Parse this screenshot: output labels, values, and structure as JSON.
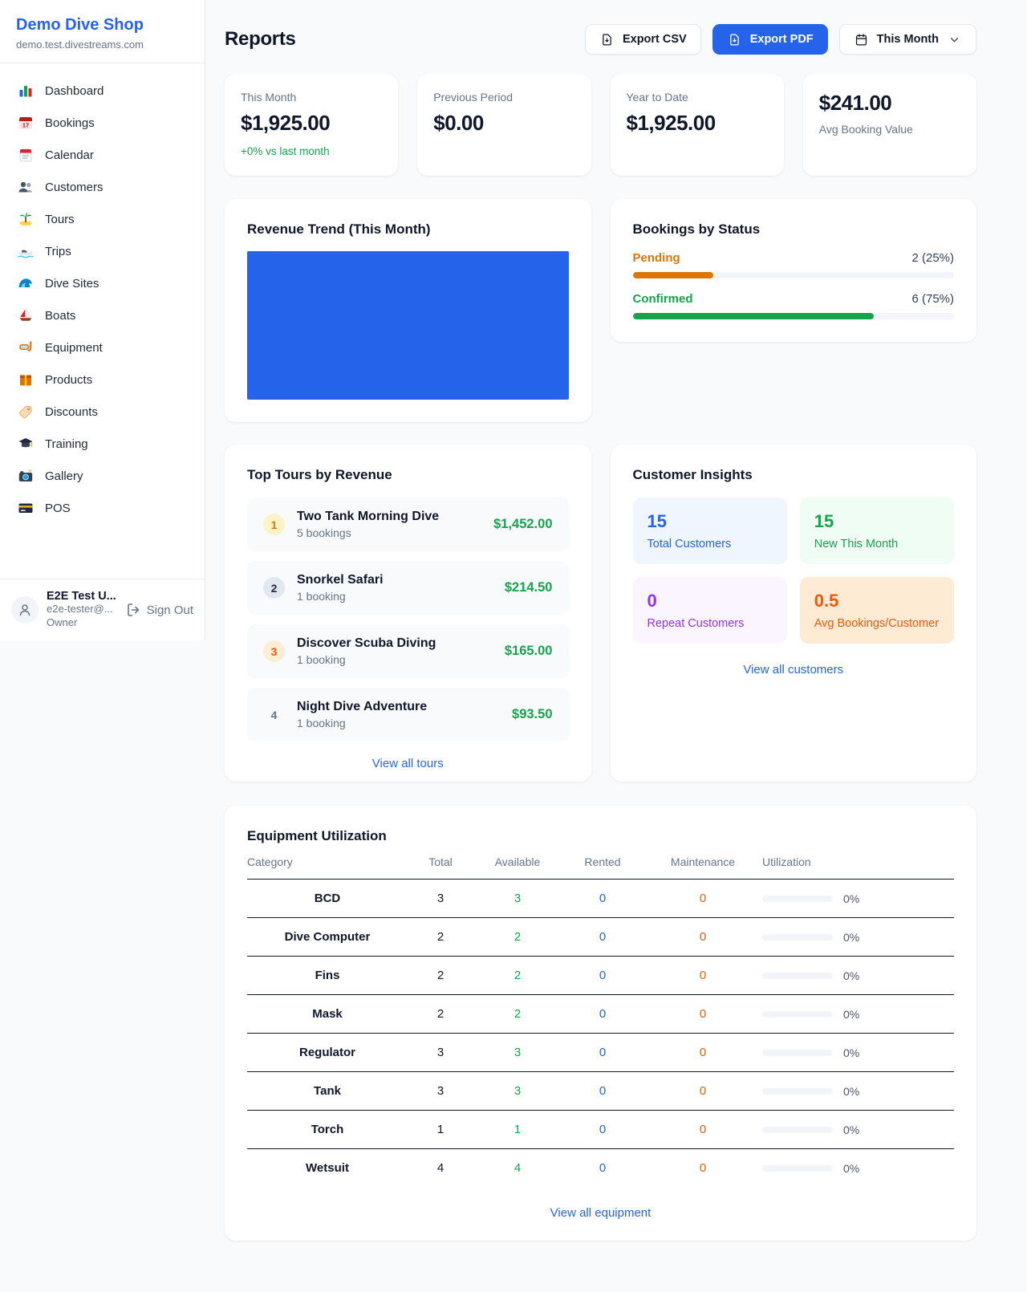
{
  "colors": {
    "accent": "#2563eb",
    "green": "#16a34a",
    "orange": "#d97706",
    "deep_orange": "#ea580c",
    "purple": "#9333ea"
  },
  "sidebar": {
    "brand": "Demo Dive Shop",
    "domain": "demo.test.divestreams.com",
    "items": [
      {
        "icon": "bar-chart",
        "label": "Dashboard"
      },
      {
        "icon": "calendar-17",
        "label": "Bookings"
      },
      {
        "icon": "calendar-tearoff",
        "label": "Calendar"
      },
      {
        "icon": "users",
        "label": "Customers"
      },
      {
        "icon": "island",
        "label": "Tours"
      },
      {
        "icon": "speedboat",
        "label": "Trips"
      },
      {
        "icon": "wave",
        "label": "Dive Sites"
      },
      {
        "icon": "sailboat",
        "label": "Boats"
      },
      {
        "icon": "dive-mask",
        "label": "Equipment"
      },
      {
        "icon": "package",
        "label": "Products"
      },
      {
        "icon": "tag",
        "label": "Discounts"
      },
      {
        "icon": "grad-cap",
        "label": "Training"
      },
      {
        "icon": "camera",
        "label": "Gallery"
      },
      {
        "icon": "credit-card",
        "label": "POS"
      }
    ],
    "user": {
      "name": "E2E Test U...",
      "email": "e2e-tester@...",
      "role": "Owner",
      "signout_label": "Sign Out"
    }
  },
  "header": {
    "title": "Reports",
    "export_csv": "Export CSV",
    "export_pdf": "Export PDF",
    "period": "This Month"
  },
  "stats": [
    {
      "label": "This Month",
      "value": "$1,925.00",
      "delta": "+0% vs last month"
    },
    {
      "label": "Previous Period",
      "value": "$0.00"
    },
    {
      "label": "Year to Date",
      "value": "$1,925.00"
    },
    {
      "label": "Avg Booking Value",
      "value": "$241.00"
    }
  ],
  "revenue_trend": {
    "title": "Revenue Trend (This Month)",
    "bar_color": "#2563eb"
  },
  "bookings_by_status": {
    "title": "Bookings by Status",
    "rows": [
      {
        "label": "Pending",
        "value_text": "2 (25%)",
        "count": 2,
        "pct": 25,
        "label_style": "color:#d97706",
        "fill_style": "width:25%;background:#d97706"
      },
      {
        "label": "Confirmed",
        "value_text": "6 (75%)",
        "count": 6,
        "pct": 75,
        "label_style": "color:#16a34a",
        "fill_style": "width:75%;background:#16a34a"
      }
    ]
  },
  "top_tours": {
    "title": "Top Tours by Revenue",
    "items": [
      {
        "rank": "1",
        "name": "Two Tank Morning Dive",
        "bookings": "5 bookings",
        "revenue": "$1,452.00",
        "badge_style": "background:#fef3c7;color:#d97706"
      },
      {
        "rank": "2",
        "name": "Snorkel Safari",
        "bookings": "1 booking",
        "revenue": "$214.50",
        "badge_style": "background:#e2e8f0;color:#1e293b"
      },
      {
        "rank": "3",
        "name": "Discover Scuba Diving",
        "bookings": "1 booking",
        "revenue": "$165.00",
        "badge_style": "background:#ffedd5;color:#ea580c"
      },
      {
        "rank": "4",
        "name": "Night Dive Adventure",
        "bookings": "1 booking",
        "revenue": "$93.50",
        "badge_style": "background:transparent;color:#64748b"
      }
    ],
    "link": "View all tours"
  },
  "customer_insights": {
    "title": "Customer Insights",
    "boxes": [
      {
        "value": "15",
        "label": "Total Customers",
        "style": "background:#eff6ff;color:#2563eb"
      },
      {
        "value": "15",
        "label": "New This Month",
        "style": "background:#f0fdf4;color:#16a34a"
      },
      {
        "value": "0",
        "label": "Repeat Customers",
        "style": "background:#faf5ff;color:#9333ea"
      },
      {
        "value": "0.5",
        "label": "Avg Bookings/Customer",
        "style": "background:#fdebd3;color:#ea580c"
      }
    ],
    "link": "View all customers"
  },
  "equipment": {
    "title": "Equipment Utilization",
    "columns": [
      "Category",
      "Total",
      "Available",
      "Rented",
      "Maintenance",
      "Utilization"
    ],
    "rows": [
      {
        "category": "BCD",
        "total": "3",
        "available": "3",
        "rented": "0",
        "maintenance": "0",
        "utilization": "0%"
      },
      {
        "category": "Dive Computer",
        "total": "2",
        "available": "2",
        "rented": "0",
        "maintenance": "0",
        "utilization": "0%"
      },
      {
        "category": "Fins",
        "total": "2",
        "available": "2",
        "rented": "0",
        "maintenance": "0",
        "utilization": "0%"
      },
      {
        "category": "Mask",
        "total": "2",
        "available": "2",
        "rented": "0",
        "maintenance": "0",
        "utilization": "0%"
      },
      {
        "category": "Regulator",
        "total": "3",
        "available": "3",
        "rented": "0",
        "maintenance": "0",
        "utilization": "0%"
      },
      {
        "category": "Tank",
        "total": "3",
        "available": "3",
        "rented": "0",
        "maintenance": "0",
        "utilization": "0%"
      },
      {
        "category": "Torch",
        "total": "1",
        "available": "1",
        "rented": "0",
        "maintenance": "0",
        "utilization": "0%"
      },
      {
        "category": "Wetsuit",
        "total": "4",
        "available": "4",
        "rented": "0",
        "maintenance": "0",
        "utilization": "0%"
      }
    ],
    "link": "View all equipment"
  }
}
